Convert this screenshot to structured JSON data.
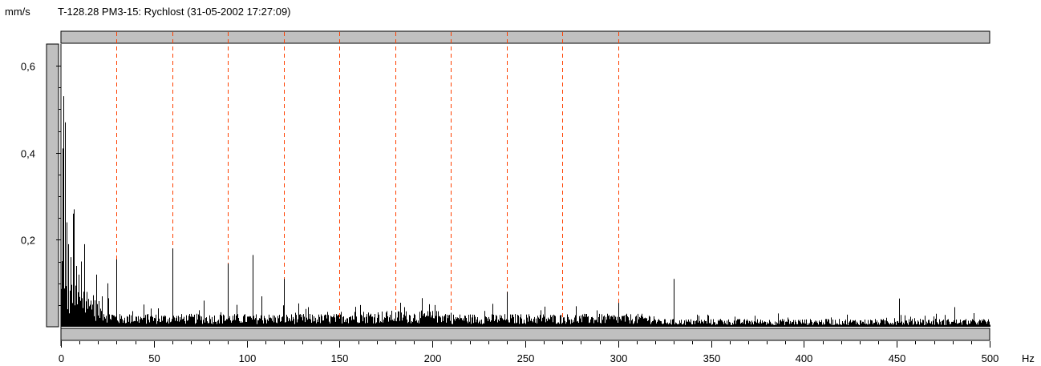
{
  "header": {
    "unit_label": "mm/s",
    "title": "T-128.28  PM3-15: Rychlost (31-05-2002 17:27:09)"
  },
  "colors": {
    "background": "#ffffff",
    "scrollbar": "#c0c0c0",
    "spectrum": "#000000",
    "harmonic_markers": "#ff4000"
  },
  "chart_data": {
    "type": "bar",
    "title": "T-128.28  PM3-15: Rychlost (31-05-2002 17:27:09)",
    "ylabel": "mm/s",
    "xlabel": "Hz",
    "xlim": [
      0,
      500
    ],
    "ylim": [
      0,
      0.65
    ],
    "grid": false,
    "x_ticks": [
      0,
      50,
      100,
      150,
      200,
      250,
      300,
      350,
      400,
      450,
      500
    ],
    "x_tick_labels": [
      "0",
      "50",
      "100",
      "150",
      "200",
      "250",
      "300",
      "350",
      "400",
      "450",
      "500"
    ],
    "y_ticks": [
      0.2,
      0.4,
      0.6
    ],
    "y_tick_labels": [
      "0,2",
      "0,4",
      "0,6"
    ],
    "harmonic_markers_hz": [
      30,
      60,
      90,
      120,
      150,
      180,
      210,
      240,
      270,
      300
    ],
    "noise_floor": {
      "start_hz": 0,
      "end_hz": 500,
      "approx_level": 0.02
    },
    "peaks": [
      {
        "x": 1.0,
        "y": 0.41
      },
      {
        "x": 1.5,
        "y": 0.53
      },
      {
        "x": 2.0,
        "y": 0.47
      },
      {
        "x": 3.0,
        "y": 0.24
      },
      {
        "x": 4.0,
        "y": 0.19
      },
      {
        "x": 5.0,
        "y": 0.16
      },
      {
        "x": 6.5,
        "y": 0.26
      },
      {
        "x": 7.0,
        "y": 0.27
      },
      {
        "x": 8.0,
        "y": 0.14
      },
      {
        "x": 9.5,
        "y": 0.12
      },
      {
        "x": 11.0,
        "y": 0.15
      },
      {
        "x": 12.5,
        "y": 0.19
      },
      {
        "x": 14.0,
        "y": 0.08
      },
      {
        "x": 16.0,
        "y": 0.06
      },
      {
        "x": 19.0,
        "y": 0.12
      },
      {
        "x": 22.0,
        "y": 0.07
      },
      {
        "x": 25.0,
        "y": 0.1
      },
      {
        "x": 30.0,
        "y": 0.155
      },
      {
        "x": 60.0,
        "y": 0.18
      },
      {
        "x": 77.0,
        "y": 0.06
      },
      {
        "x": 90.0,
        "y": 0.145
      },
      {
        "x": 103.0,
        "y": 0.165
      },
      {
        "x": 108.0,
        "y": 0.07
      },
      {
        "x": 120.0,
        "y": 0.11
      },
      {
        "x": 133.0,
        "y": 0.045
      },
      {
        "x": 161.0,
        "y": 0.05
      },
      {
        "x": 185.0,
        "y": 0.045
      },
      {
        "x": 201.0,
        "y": 0.05
      },
      {
        "x": 240.0,
        "y": 0.08
      },
      {
        "x": 300.0,
        "y": 0.055
      },
      {
        "x": 330.0,
        "y": 0.11
      },
      {
        "x": 451.0,
        "y": 0.065
      },
      {
        "x": 481.0,
        "y": 0.045
      }
    ]
  }
}
